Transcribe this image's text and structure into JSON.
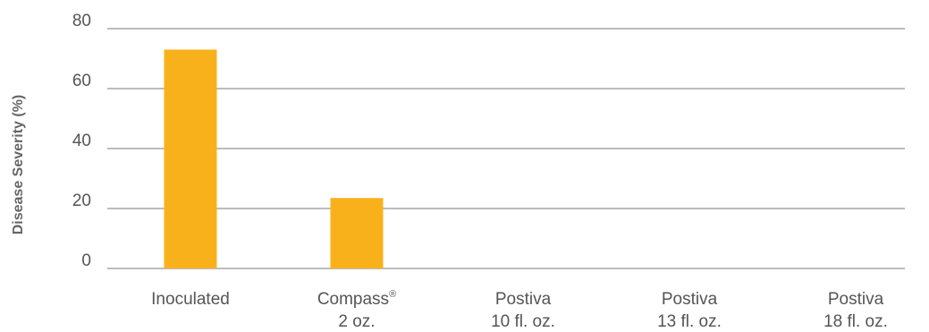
{
  "chart_data": {
    "type": "bar",
    "ylabel": "Disease Severity (%)",
    "xlabel": "",
    "ylim": [
      0,
      80
    ],
    "yticks": [
      0,
      20,
      40,
      60,
      80
    ],
    "grid": true,
    "bar_color": "#F9B11B",
    "grid_color": "#7a7a7a",
    "categories": [
      {
        "lines": [
          "Inoculated"
        ]
      },
      {
        "lines": [
          "Compass",
          "2 oz."
        ],
        "superscript": "®"
      },
      {
        "lines": [
          "Postiva",
          "10 fl. oz."
        ]
      },
      {
        "lines": [
          "Postiva",
          "13 fl. oz."
        ]
      },
      {
        "lines": [
          "Postiva",
          "18 fl. oz."
        ]
      }
    ],
    "values": [
      73,
      23.5,
      0,
      0,
      0
    ]
  }
}
